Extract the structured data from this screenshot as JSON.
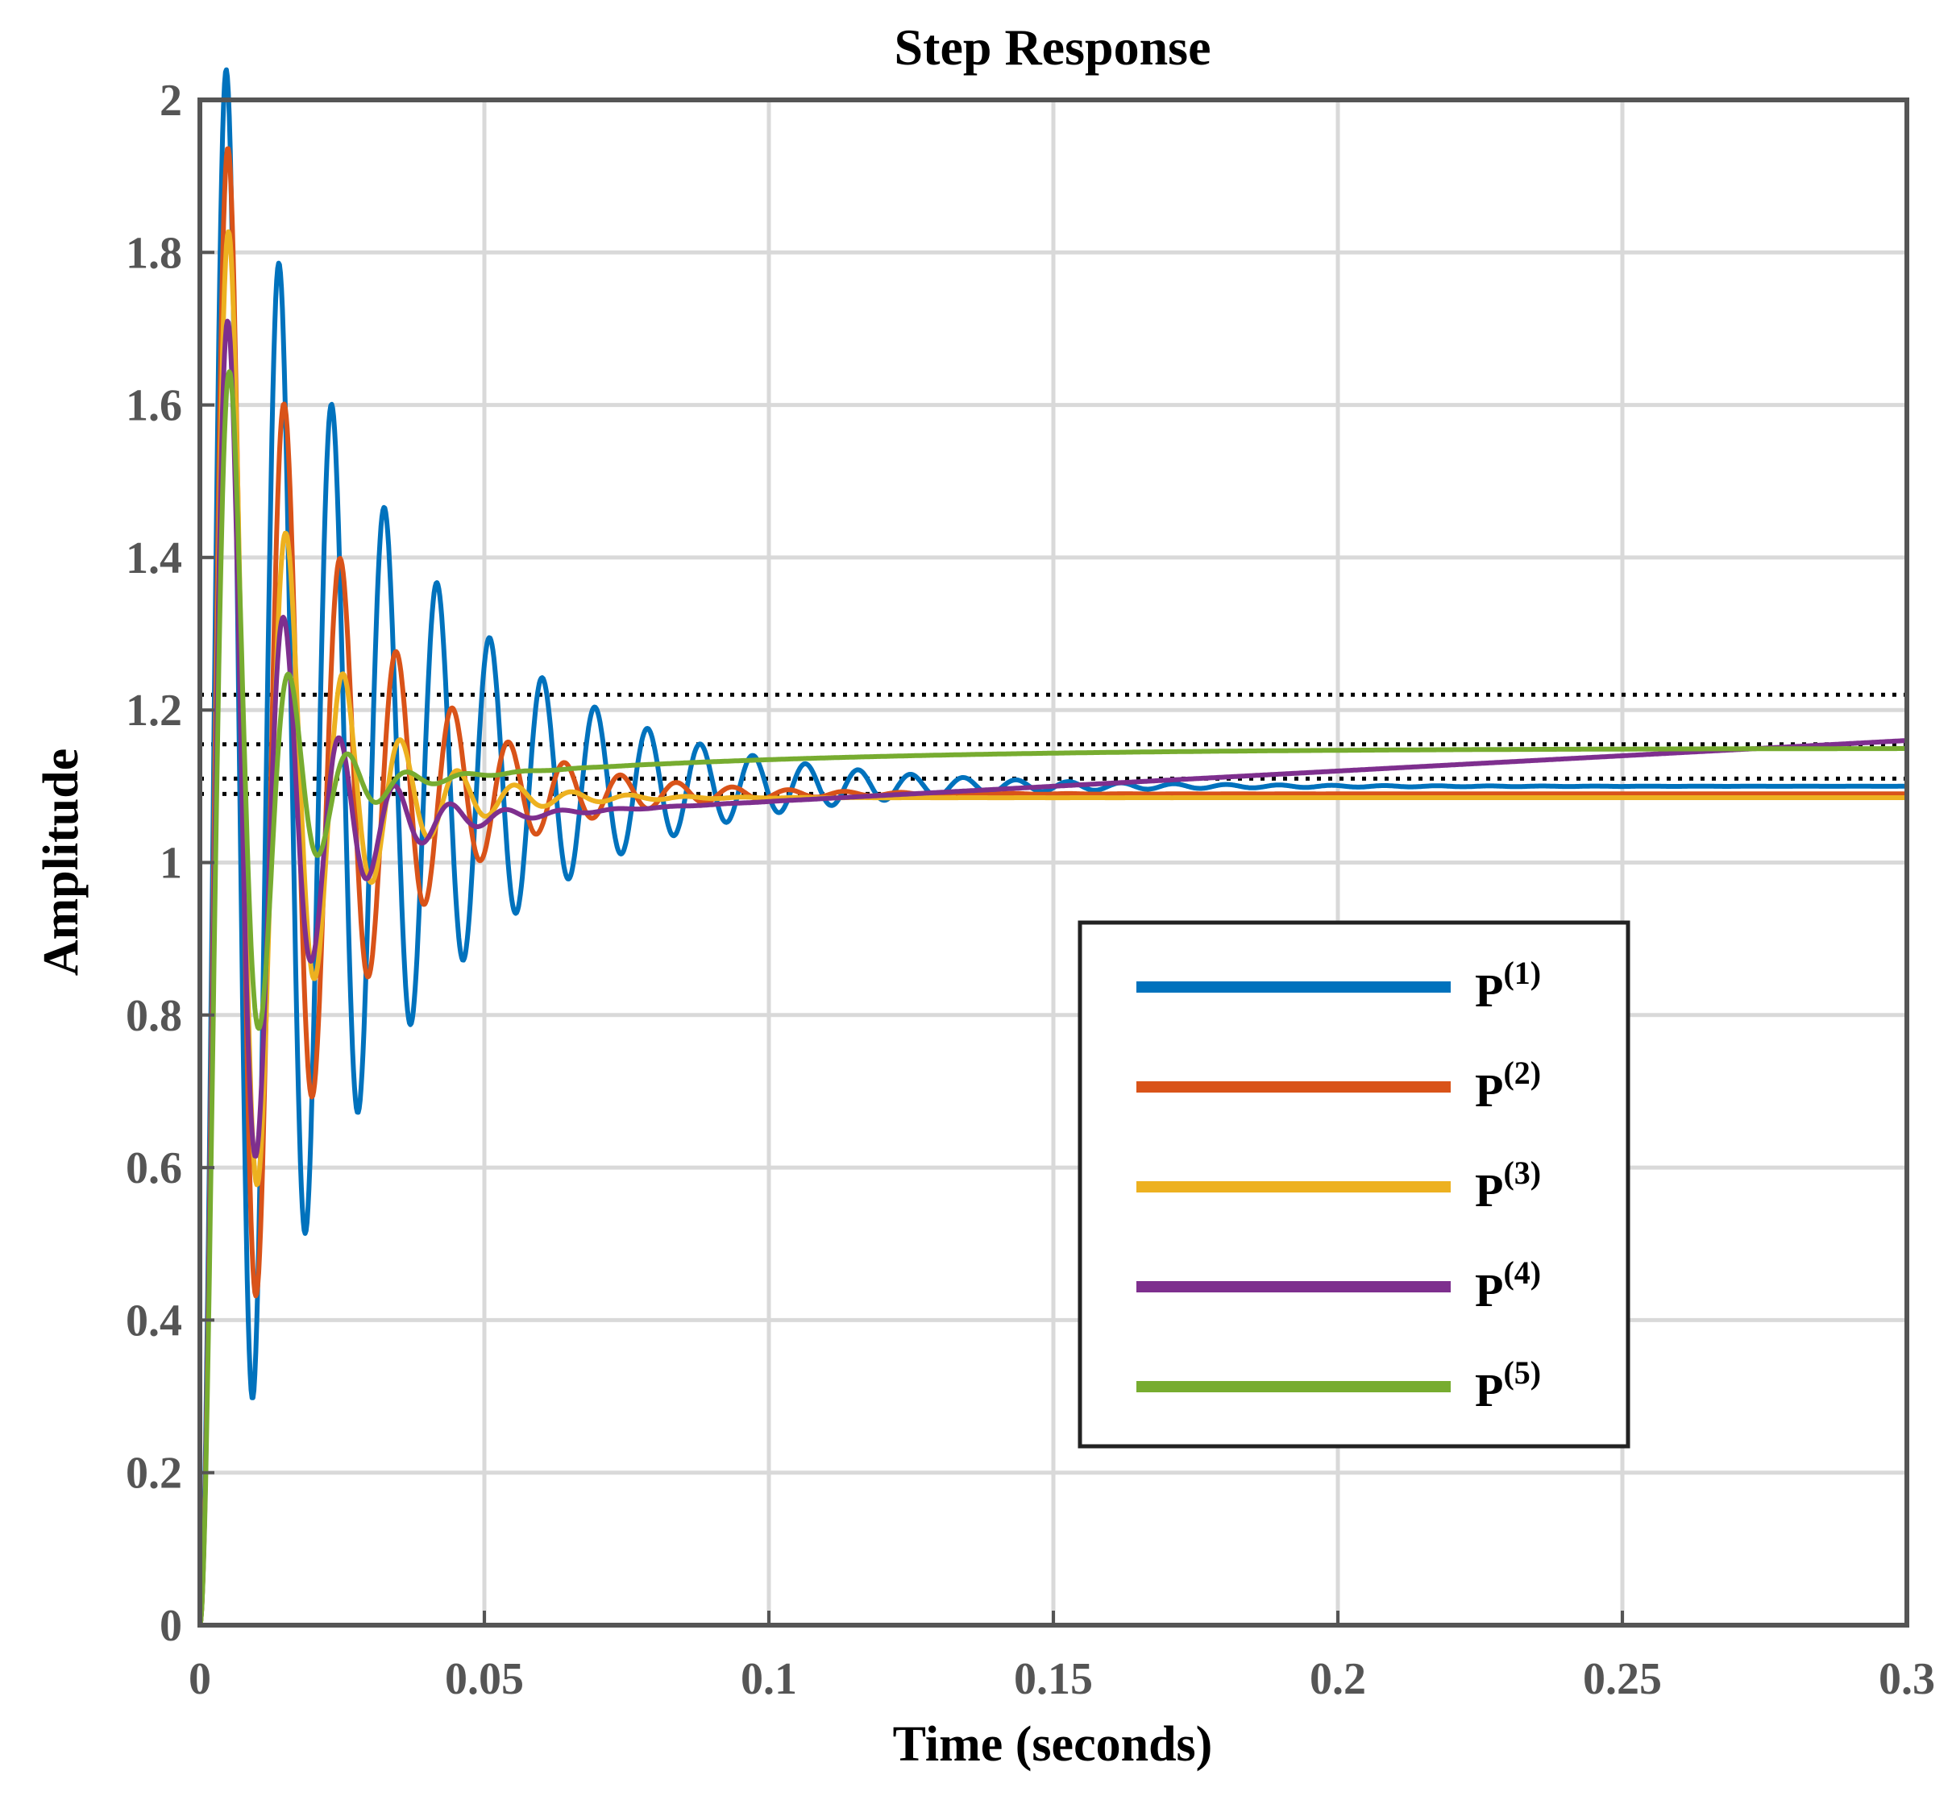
{
  "chart_data": {
    "type": "line",
    "title": "Step Response",
    "xlabel": "Time (seconds)",
    "ylabel": "Amplitude",
    "xlim": [
      0,
      0.3
    ],
    "ylim": [
      0,
      2
    ],
    "xticks": [
      0,
      0.05,
      0.1,
      0.15,
      0.2,
      0.25,
      0.3
    ],
    "xtick_labels": [
      "0",
      "0.05",
      "0.1",
      "0.15",
      "0.2",
      "0.25",
      "0.3"
    ],
    "yticks": [
      0,
      0.2,
      0.4,
      0.6,
      0.8,
      1,
      1.2,
      1.4,
      1.6,
      1.8,
      2
    ],
    "ytick_labels": [
      "0",
      "0.2",
      "0.4",
      "0.6",
      "0.8",
      "1",
      "1.2",
      "1.4",
      "1.6",
      "1.8",
      "2"
    ],
    "grid": true,
    "legend_position": "lower-right",
    "reference_lines": [
      {
        "y": 1.22,
        "style": "dotted"
      },
      {
        "y": 1.155,
        "style": "dotted"
      },
      {
        "y": 1.11,
        "style": "dotted"
      },
      {
        "y": 1.09,
        "style": "dotted"
      }
    ],
    "series": [
      {
        "name": "P",
        "superscript": "(1)",
        "color": "#0072BD",
        "response": {
          "final": 1.1,
          "omega": 680,
          "zeta": 0.05
        }
      },
      {
        "name": "P",
        "superscript": "(2)",
        "color": "#D95319",
        "response": {
          "final": 1.09,
          "omega": 640,
          "zeta": 0.08
        }
      },
      {
        "name": "P",
        "superscript": "(3)",
        "color": "#EDB120",
        "response": {
          "final": 1.085,
          "omega": 630,
          "zeta": 0.12
        }
      },
      {
        "name": "P",
        "superscript": "(4)",
        "color": "#7E2F8E",
        "response": {
          "final": 1.04,
          "omega": 650,
          "zeta": 0.14,
          "drift_end": 1.16,
          "drift_tau": 0.0
        }
      },
      {
        "name": "P",
        "superscript": "(5)",
        "color": "#77AC30",
        "response": {
          "final": 1.07,
          "omega": 620,
          "zeta": 0.2,
          "settle_end": 1.15,
          "settle_tau": 0.06
        }
      }
    ]
  }
}
